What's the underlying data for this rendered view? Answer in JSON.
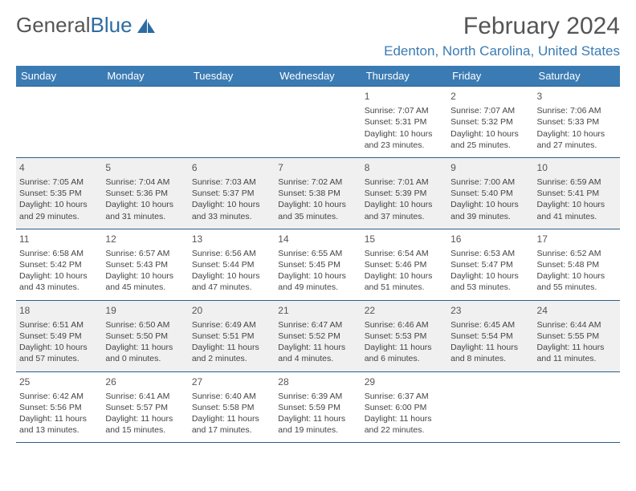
{
  "logo": {
    "text1": "General",
    "text2": "Blue"
  },
  "header": {
    "month": "February 2024",
    "location": "Edenton, North Carolina, United States"
  },
  "dayNames": [
    "Sunday",
    "Monday",
    "Tuesday",
    "Wednesday",
    "Thursday",
    "Friday",
    "Saturday"
  ],
  "colors": {
    "headerBg": "#3b7bb3",
    "headerBorder": "#2d5f8a",
    "altRowBg": "#f0f0f0",
    "locationText": "#3b7bb3"
  },
  "weeks": [
    [
      null,
      null,
      null,
      null,
      {
        "n": "1",
        "sunrise": "Sunrise: 7:07 AM",
        "sunset": "Sunset: 5:31 PM",
        "daylight": "Daylight: 10 hours and 23 minutes."
      },
      {
        "n": "2",
        "sunrise": "Sunrise: 7:07 AM",
        "sunset": "Sunset: 5:32 PM",
        "daylight": "Daylight: 10 hours and 25 minutes."
      },
      {
        "n": "3",
        "sunrise": "Sunrise: 7:06 AM",
        "sunset": "Sunset: 5:33 PM",
        "daylight": "Daylight: 10 hours and 27 minutes."
      }
    ],
    [
      {
        "n": "4",
        "sunrise": "Sunrise: 7:05 AM",
        "sunset": "Sunset: 5:35 PM",
        "daylight": "Daylight: 10 hours and 29 minutes."
      },
      {
        "n": "5",
        "sunrise": "Sunrise: 7:04 AM",
        "sunset": "Sunset: 5:36 PM",
        "daylight": "Daylight: 10 hours and 31 minutes."
      },
      {
        "n": "6",
        "sunrise": "Sunrise: 7:03 AM",
        "sunset": "Sunset: 5:37 PM",
        "daylight": "Daylight: 10 hours and 33 minutes."
      },
      {
        "n": "7",
        "sunrise": "Sunrise: 7:02 AM",
        "sunset": "Sunset: 5:38 PM",
        "daylight": "Daylight: 10 hours and 35 minutes."
      },
      {
        "n": "8",
        "sunrise": "Sunrise: 7:01 AM",
        "sunset": "Sunset: 5:39 PM",
        "daylight": "Daylight: 10 hours and 37 minutes."
      },
      {
        "n": "9",
        "sunrise": "Sunrise: 7:00 AM",
        "sunset": "Sunset: 5:40 PM",
        "daylight": "Daylight: 10 hours and 39 minutes."
      },
      {
        "n": "10",
        "sunrise": "Sunrise: 6:59 AM",
        "sunset": "Sunset: 5:41 PM",
        "daylight": "Daylight: 10 hours and 41 minutes."
      }
    ],
    [
      {
        "n": "11",
        "sunrise": "Sunrise: 6:58 AM",
        "sunset": "Sunset: 5:42 PM",
        "daylight": "Daylight: 10 hours and 43 minutes."
      },
      {
        "n": "12",
        "sunrise": "Sunrise: 6:57 AM",
        "sunset": "Sunset: 5:43 PM",
        "daylight": "Daylight: 10 hours and 45 minutes."
      },
      {
        "n": "13",
        "sunrise": "Sunrise: 6:56 AM",
        "sunset": "Sunset: 5:44 PM",
        "daylight": "Daylight: 10 hours and 47 minutes."
      },
      {
        "n": "14",
        "sunrise": "Sunrise: 6:55 AM",
        "sunset": "Sunset: 5:45 PM",
        "daylight": "Daylight: 10 hours and 49 minutes."
      },
      {
        "n": "15",
        "sunrise": "Sunrise: 6:54 AM",
        "sunset": "Sunset: 5:46 PM",
        "daylight": "Daylight: 10 hours and 51 minutes."
      },
      {
        "n": "16",
        "sunrise": "Sunrise: 6:53 AM",
        "sunset": "Sunset: 5:47 PM",
        "daylight": "Daylight: 10 hours and 53 minutes."
      },
      {
        "n": "17",
        "sunrise": "Sunrise: 6:52 AM",
        "sunset": "Sunset: 5:48 PM",
        "daylight": "Daylight: 10 hours and 55 minutes."
      }
    ],
    [
      {
        "n": "18",
        "sunrise": "Sunrise: 6:51 AM",
        "sunset": "Sunset: 5:49 PM",
        "daylight": "Daylight: 10 hours and 57 minutes."
      },
      {
        "n": "19",
        "sunrise": "Sunrise: 6:50 AM",
        "sunset": "Sunset: 5:50 PM",
        "daylight": "Daylight: 11 hours and 0 minutes."
      },
      {
        "n": "20",
        "sunrise": "Sunrise: 6:49 AM",
        "sunset": "Sunset: 5:51 PM",
        "daylight": "Daylight: 11 hours and 2 minutes."
      },
      {
        "n": "21",
        "sunrise": "Sunrise: 6:47 AM",
        "sunset": "Sunset: 5:52 PM",
        "daylight": "Daylight: 11 hours and 4 minutes."
      },
      {
        "n": "22",
        "sunrise": "Sunrise: 6:46 AM",
        "sunset": "Sunset: 5:53 PM",
        "daylight": "Daylight: 11 hours and 6 minutes."
      },
      {
        "n": "23",
        "sunrise": "Sunrise: 6:45 AM",
        "sunset": "Sunset: 5:54 PM",
        "daylight": "Daylight: 11 hours and 8 minutes."
      },
      {
        "n": "24",
        "sunrise": "Sunrise: 6:44 AM",
        "sunset": "Sunset: 5:55 PM",
        "daylight": "Daylight: 11 hours and 11 minutes."
      }
    ],
    [
      {
        "n": "25",
        "sunrise": "Sunrise: 6:42 AM",
        "sunset": "Sunset: 5:56 PM",
        "daylight": "Daylight: 11 hours and 13 minutes."
      },
      {
        "n": "26",
        "sunrise": "Sunrise: 6:41 AM",
        "sunset": "Sunset: 5:57 PM",
        "daylight": "Daylight: 11 hours and 15 minutes."
      },
      {
        "n": "27",
        "sunrise": "Sunrise: 6:40 AM",
        "sunset": "Sunset: 5:58 PM",
        "daylight": "Daylight: 11 hours and 17 minutes."
      },
      {
        "n": "28",
        "sunrise": "Sunrise: 6:39 AM",
        "sunset": "Sunset: 5:59 PM",
        "daylight": "Daylight: 11 hours and 19 minutes."
      },
      {
        "n": "29",
        "sunrise": "Sunrise: 6:37 AM",
        "sunset": "Sunset: 6:00 PM",
        "daylight": "Daylight: 11 hours and 22 minutes."
      },
      null,
      null
    ]
  ]
}
